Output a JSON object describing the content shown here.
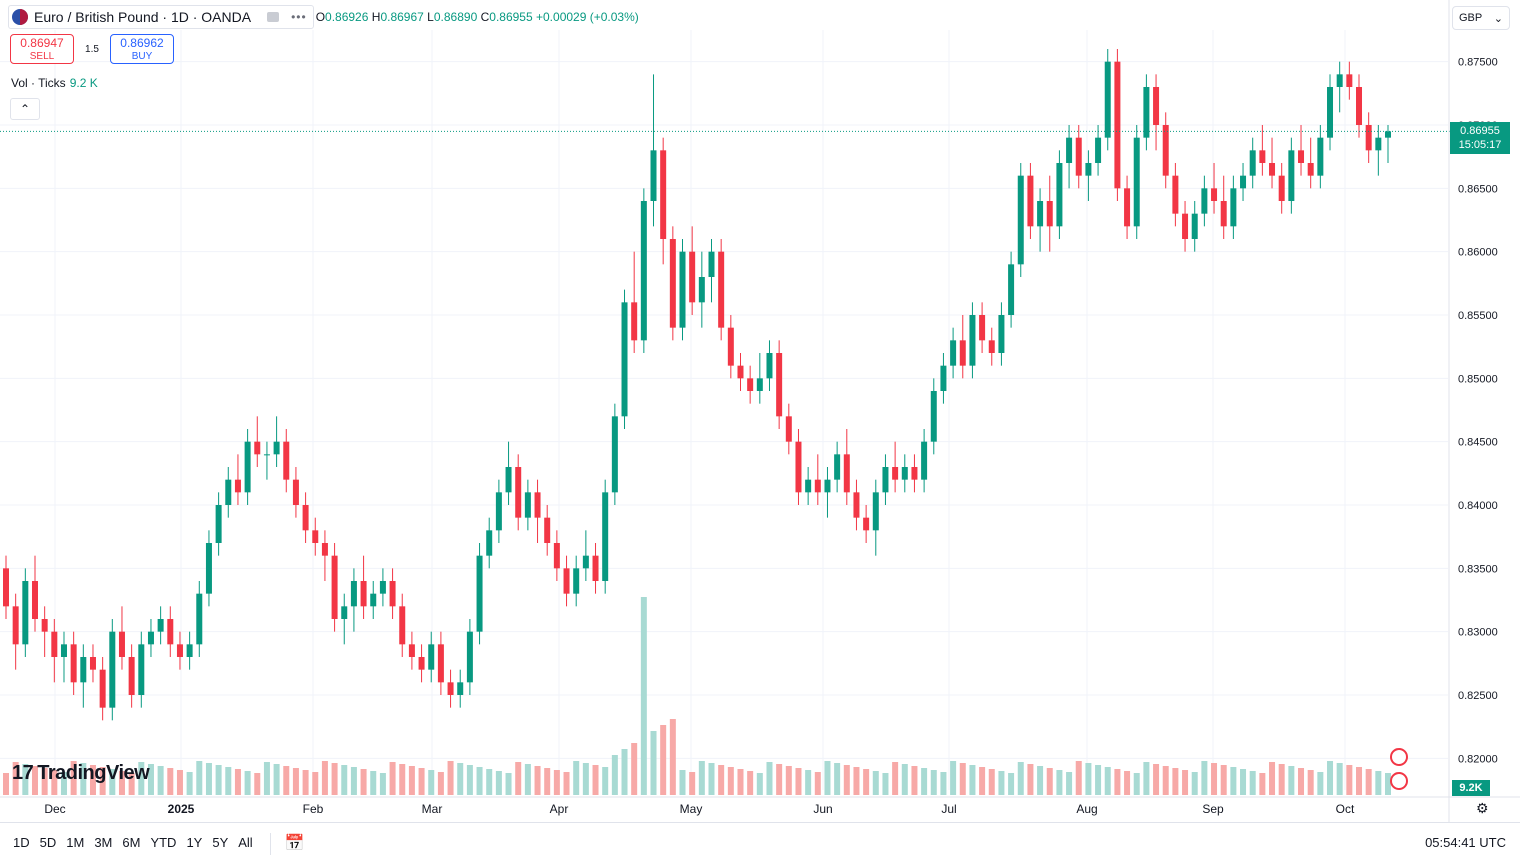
{
  "header": {
    "symbol_title": "Euro / British Pound · 1D · OANDA",
    "ohlc": {
      "o_label": "O",
      "o": "0.86926",
      "h_label": "H",
      "h": "0.86967",
      "l_label": "L",
      "l": "0.86890",
      "c_label": "C",
      "c": "0.86955",
      "change": "+0.00029 (+0.03%)"
    },
    "more_label": "•••"
  },
  "trade": {
    "sell_price": "0.86947",
    "sell_label": "SELL",
    "spread": "1.5",
    "buy_price": "0.86962",
    "buy_label": "BUY"
  },
  "volume_legend": {
    "label": "Vol · Ticks",
    "value": "9.2 K"
  },
  "currency": {
    "selected": "GBP",
    "chevron": "⌄"
  },
  "price_axis": {
    "last_price": "0.86955",
    "countdown": "15:05:17",
    "volume_tag": "9.2K"
  },
  "branding": {
    "logo_text": "TradingView"
  },
  "range_buttons": [
    "1D",
    "5D",
    "1M",
    "3M",
    "6M",
    "YTD",
    "1Y",
    "5Y",
    "All"
  ],
  "clock": "05:54:41 UTC",
  "colors": {
    "up": "#089981",
    "down": "#f23645",
    "vol_up": "#a8dad3",
    "vol_down": "#f7a9a7",
    "grid": "#f0f3fa"
  },
  "chart_data": {
    "type": "candlestick",
    "yticks": [
      "0.87500",
      "0.87000",
      "0.86500",
      "0.86000",
      "0.85500",
      "0.85000",
      "0.84500",
      "0.84000",
      "0.83500",
      "0.83000",
      "0.82500",
      "0.82000"
    ],
    "ylim": [
      0.8175,
      0.8775
    ],
    "xticks": [
      "Dec",
      "2025",
      "Feb",
      "Mar",
      "Apr",
      "May",
      "Jun",
      "Jul",
      "Aug",
      "Sep",
      "Oct"
    ],
    "series": [
      {
        "name": "EURGBP",
        "type": "candle",
        "values": [
          [
            0.835,
            0.836,
            0.831,
            0.832
          ],
          [
            0.832,
            0.833,
            0.827,
            0.829
          ],
          [
            0.829,
            0.835,
            0.828,
            0.834
          ],
          [
            0.834,
            0.836,
            0.83,
            0.831
          ],
          [
            0.831,
            0.832,
            0.828,
            0.83
          ],
          [
            0.83,
            0.831,
            0.826,
            0.828
          ],
          [
            0.828,
            0.83,
            0.826,
            0.829
          ],
          [
            0.829,
            0.83,
            0.825,
            0.826
          ],
          [
            0.826,
            0.829,
            0.824,
            0.828
          ],
          [
            0.828,
            0.829,
            0.826,
            0.827
          ],
          [
            0.827,
            0.828,
            0.823,
            0.824
          ],
          [
            0.824,
            0.831,
            0.823,
            0.83
          ],
          [
            0.83,
            0.832,
            0.827,
            0.828
          ],
          [
            0.828,
            0.829,
            0.824,
            0.825
          ],
          [
            0.825,
            0.83,
            0.824,
            0.829
          ],
          [
            0.829,
            0.831,
            0.828,
            0.83
          ],
          [
            0.83,
            0.832,
            0.829,
            0.831
          ],
          [
            0.831,
            0.832,
            0.828,
            0.829
          ],
          [
            0.829,
            0.83,
            0.827,
            0.828
          ],
          [
            0.828,
            0.83,
            0.827,
            0.829
          ],
          [
            0.829,
            0.834,
            0.828,
            0.833
          ],
          [
            0.833,
            0.838,
            0.832,
            0.837
          ],
          [
            0.837,
            0.841,
            0.836,
            0.84
          ],
          [
            0.84,
            0.843,
            0.839,
            0.842
          ],
          [
            0.842,
            0.844,
            0.84,
            0.841
          ],
          [
            0.841,
            0.846,
            0.84,
            0.845
          ],
          [
            0.845,
            0.847,
            0.843,
            0.844
          ],
          [
            0.844,
            0.845,
            0.842,
            0.844
          ],
          [
            0.844,
            0.847,
            0.843,
            0.845
          ],
          [
            0.845,
            0.846,
            0.841,
            0.842
          ],
          [
            0.842,
            0.843,
            0.839,
            0.84
          ],
          [
            0.84,
            0.841,
            0.837,
            0.838
          ],
          [
            0.838,
            0.839,
            0.836,
            0.837
          ],
          [
            0.837,
            0.838,
            0.834,
            0.836
          ],
          [
            0.836,
            0.837,
            0.83,
            0.831
          ],
          [
            0.831,
            0.833,
            0.829,
            0.832
          ],
          [
            0.832,
            0.835,
            0.83,
            0.834
          ],
          [
            0.834,
            0.836,
            0.831,
            0.832
          ],
          [
            0.832,
            0.834,
            0.831,
            0.833
          ],
          [
            0.833,
            0.835,
            0.832,
            0.834
          ],
          [
            0.834,
            0.835,
            0.831,
            0.832
          ],
          [
            0.832,
            0.833,
            0.828,
            0.829
          ],
          [
            0.829,
            0.83,
            0.827,
            0.828
          ],
          [
            0.828,
            0.829,
            0.826,
            0.827
          ],
          [
            0.827,
            0.83,
            0.826,
            0.829
          ],
          [
            0.829,
            0.83,
            0.825,
            0.826
          ],
          [
            0.826,
            0.827,
            0.824,
            0.825
          ],
          [
            0.825,
            0.827,
            0.824,
            0.826
          ],
          [
            0.826,
            0.831,
            0.825,
            0.83
          ],
          [
            0.83,
            0.837,
            0.829,
            0.836
          ],
          [
            0.836,
            0.839,
            0.835,
            0.838
          ],
          [
            0.838,
            0.842,
            0.837,
            0.841
          ],
          [
            0.841,
            0.845,
            0.84,
            0.843
          ],
          [
            0.843,
            0.844,
            0.838,
            0.839
          ],
          [
            0.839,
            0.842,
            0.838,
            0.841
          ],
          [
            0.841,
            0.842,
            0.837,
            0.839
          ],
          [
            0.839,
            0.84,
            0.836,
            0.837
          ],
          [
            0.837,
            0.838,
            0.834,
            0.835
          ],
          [
            0.835,
            0.836,
            0.832,
            0.833
          ],
          [
            0.833,
            0.836,
            0.832,
            0.835
          ],
          [
            0.835,
            0.838,
            0.834,
            0.836
          ],
          [
            0.836,
            0.837,
            0.833,
            0.834
          ],
          [
            0.834,
            0.842,
            0.833,
            0.841
          ],
          [
            0.841,
            0.848,
            0.84,
            0.847
          ],
          [
            0.847,
            0.857,
            0.846,
            0.856
          ],
          [
            0.856,
            0.86,
            0.852,
            0.853
          ],
          [
            0.853,
            0.865,
            0.852,
            0.864
          ],
          [
            0.864,
            0.874,
            0.862,
            0.868
          ],
          [
            0.868,
            0.869,
            0.859,
            0.861
          ],
          [
            0.861,
            0.862,
            0.853,
            0.854
          ],
          [
            0.854,
            0.861,
            0.853,
            0.86
          ],
          [
            0.86,
            0.862,
            0.855,
            0.856
          ],
          [
            0.856,
            0.86,
            0.854,
            0.858
          ],
          [
            0.858,
            0.861,
            0.856,
            0.86
          ],
          [
            0.86,
            0.861,
            0.853,
            0.854
          ],
          [
            0.854,
            0.855,
            0.85,
            0.851
          ],
          [
            0.851,
            0.852,
            0.849,
            0.85
          ],
          [
            0.85,
            0.851,
            0.848,
            0.849
          ],
          [
            0.849,
            0.852,
            0.848,
            0.85
          ],
          [
            0.85,
            0.853,
            0.849,
            0.852
          ],
          [
            0.852,
            0.853,
            0.846,
            0.847
          ],
          [
            0.847,
            0.848,
            0.844,
            0.845
          ],
          [
            0.845,
            0.846,
            0.84,
            0.841
          ],
          [
            0.841,
            0.843,
            0.84,
            0.842
          ],
          [
            0.842,
            0.844,
            0.84,
            0.841
          ],
          [
            0.841,
            0.843,
            0.839,
            0.842
          ],
          [
            0.842,
            0.845,
            0.841,
            0.844
          ],
          [
            0.844,
            0.846,
            0.84,
            0.841
          ],
          [
            0.841,
            0.842,
            0.838,
            0.839
          ],
          [
            0.839,
            0.84,
            0.837,
            0.838
          ],
          [
            0.838,
            0.842,
            0.836,
            0.841
          ],
          [
            0.841,
            0.844,
            0.84,
            0.843
          ],
          [
            0.843,
            0.845,
            0.841,
            0.842
          ],
          [
            0.842,
            0.844,
            0.841,
            0.843
          ],
          [
            0.843,
            0.844,
            0.841,
            0.842
          ],
          [
            0.842,
            0.846,
            0.841,
            0.845
          ],
          [
            0.845,
            0.85,
            0.844,
            0.849
          ],
          [
            0.849,
            0.852,
            0.848,
            0.851
          ],
          [
            0.851,
            0.854,
            0.85,
            0.853
          ],
          [
            0.853,
            0.855,
            0.85,
            0.851
          ],
          [
            0.851,
            0.856,
            0.85,
            0.855
          ],
          [
            0.855,
            0.856,
            0.852,
            0.853
          ],
          [
            0.853,
            0.854,
            0.851,
            0.852
          ],
          [
            0.852,
            0.856,
            0.851,
            0.855
          ],
          [
            0.855,
            0.86,
            0.854,
            0.859
          ],
          [
            0.859,
            0.867,
            0.858,
            0.866
          ],
          [
            0.866,
            0.867,
            0.861,
            0.862
          ],
          [
            0.862,
            0.865,
            0.86,
            0.864
          ],
          [
            0.864,
            0.866,
            0.86,
            0.862
          ],
          [
            0.862,
            0.868,
            0.861,
            0.867
          ],
          [
            0.867,
            0.87,
            0.865,
            0.869
          ],
          [
            0.869,
            0.87,
            0.865,
            0.866
          ],
          [
            0.866,
            0.868,
            0.864,
            0.867
          ],
          [
            0.867,
            0.87,
            0.866,
            0.869
          ],
          [
            0.869,
            0.876,
            0.868,
            0.875
          ],
          [
            0.875,
            0.876,
            0.864,
            0.865
          ],
          [
            0.865,
            0.866,
            0.861,
            0.862
          ],
          [
            0.862,
            0.87,
            0.861,
            0.869
          ],
          [
            0.869,
            0.874,
            0.868,
            0.873
          ],
          [
            0.873,
            0.874,
            0.868,
            0.87
          ],
          [
            0.87,
            0.871,
            0.865,
            0.866
          ],
          [
            0.866,
            0.867,
            0.862,
            0.863
          ],
          [
            0.863,
            0.864,
            0.86,
            0.861
          ],
          [
            0.861,
            0.864,
            0.86,
            0.863
          ],
          [
            0.863,
            0.866,
            0.862,
            0.865
          ],
          [
            0.865,
            0.867,
            0.863,
            0.864
          ],
          [
            0.864,
            0.866,
            0.861,
            0.862
          ],
          [
            0.862,
            0.866,
            0.861,
            0.865
          ],
          [
            0.865,
            0.867,
            0.864,
            0.866
          ],
          [
            0.866,
            0.869,
            0.865,
            0.868
          ],
          [
            0.868,
            0.87,
            0.866,
            0.867
          ],
          [
            0.867,
            0.869,
            0.865,
            0.866
          ],
          [
            0.866,
            0.867,
            0.863,
            0.864
          ],
          [
            0.864,
            0.869,
            0.863,
            0.868
          ],
          [
            0.868,
            0.87,
            0.866,
            0.867
          ],
          [
            0.867,
            0.869,
            0.865,
            0.866
          ],
          [
            0.866,
            0.87,
            0.865,
            0.869
          ],
          [
            0.869,
            0.874,
            0.868,
            0.873
          ],
          [
            0.873,
            0.875,
            0.871,
            0.874
          ],
          [
            0.874,
            0.875,
            0.872,
            0.873
          ],
          [
            0.873,
            0.874,
            0.869,
            0.87
          ],
          [
            0.87,
            0.871,
            0.867,
            0.868
          ],
          [
            0.868,
            0.87,
            0.866,
            0.869
          ],
          [
            0.869,
            0.87,
            0.867,
            0.8695
          ]
        ]
      }
    ],
    "volume": {
      "name": "Vol · Ticks",
      "last": "9.2K",
      "peak_index": 66
    }
  }
}
